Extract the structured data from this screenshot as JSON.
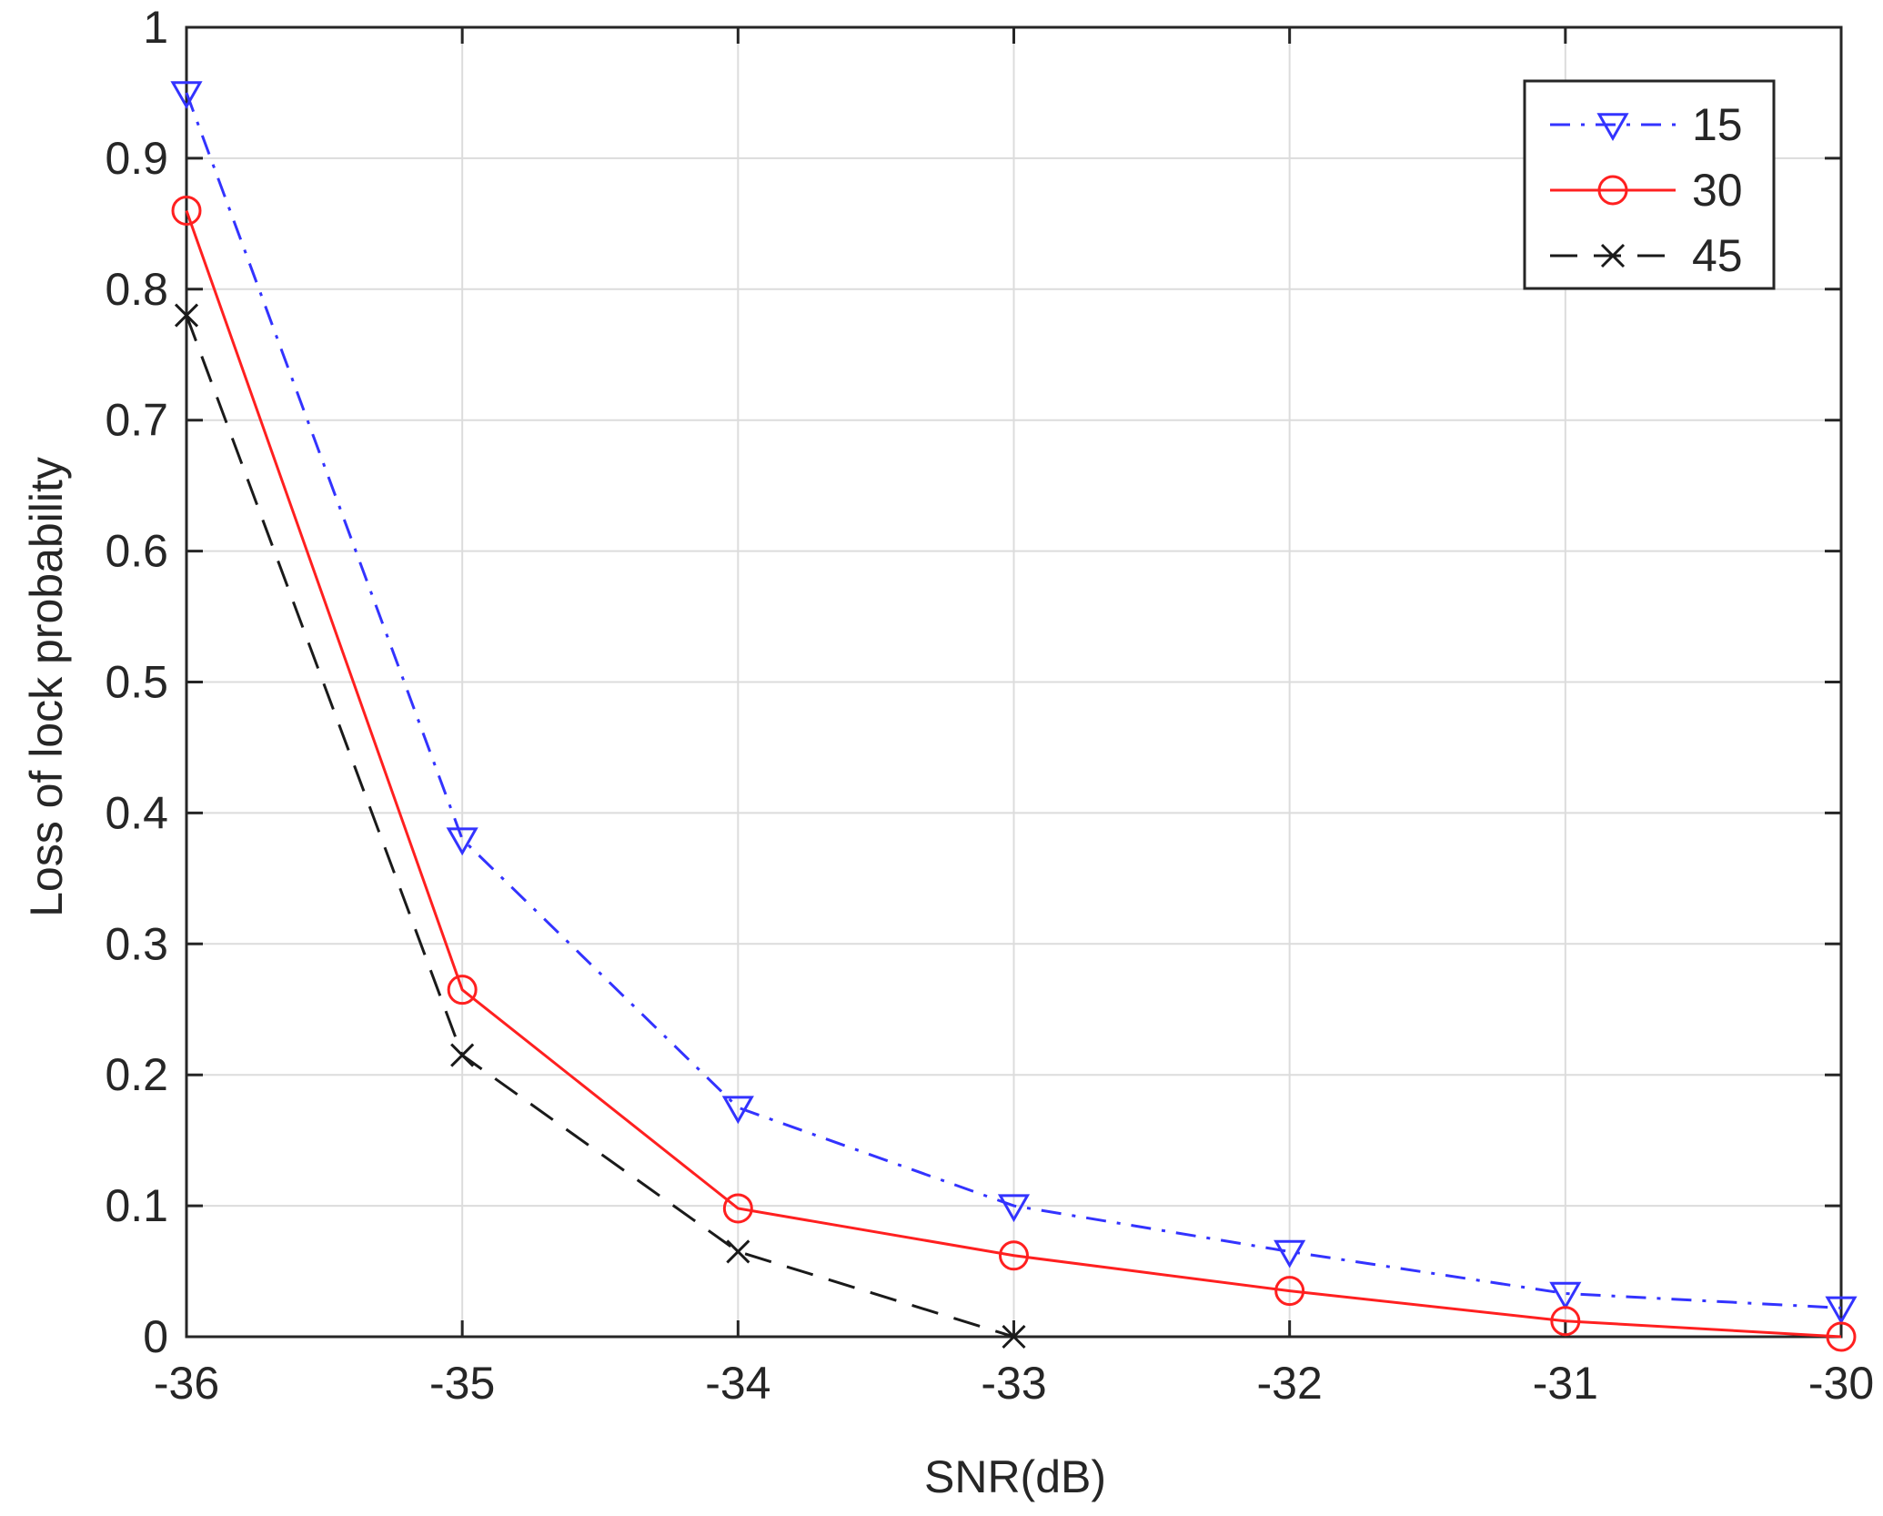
{
  "chart_data": {
    "type": "line",
    "title": "",
    "xlabel": "SNR(dB)",
    "ylabel": "Loss of lock probability",
    "xlim": [
      -36,
      -30
    ],
    "ylim": [
      0,
      1
    ],
    "x_ticks": [
      -36,
      -35,
      -34,
      -33,
      -32,
      -31,
      -30
    ],
    "x_tick_labels": [
      "-36",
      "-35",
      "-34",
      "-33",
      "-32",
      "-31",
      "-30"
    ],
    "y_ticks": [
      0,
      0.1,
      0.2,
      0.3,
      0.4,
      0.5,
      0.6,
      0.7,
      0.8,
      0.9,
      1
    ],
    "y_tick_labels": [
      "0",
      "0.1",
      "0.2",
      "0.3",
      "0.4",
      "0.5",
      "0.6",
      "0.7",
      "0.8",
      "0.9",
      "1"
    ],
    "grid": true,
    "legend_position": "top-right",
    "series": [
      {
        "name": "15",
        "color": "#3333ff",
        "line_style": "dash-dot",
        "marker": "triangle-down",
        "x": [
          -36,
          -35,
          -34,
          -33,
          -32,
          -31,
          -30
        ],
        "y": [
          0.95,
          0.38,
          0.175,
          0.1,
          0.065,
          0.033,
          0.022
        ]
      },
      {
        "name": "30",
        "color": "#ff2020",
        "line_style": "solid",
        "marker": "circle",
        "x": [
          -36,
          -35,
          -34,
          -33,
          -32,
          -31,
          -30
        ],
        "y": [
          0.86,
          0.265,
          0.098,
          0.062,
          0.035,
          0.012,
          0.0
        ]
      },
      {
        "name": "45",
        "color": "#1a1a1a",
        "line_style": "dashed",
        "marker": "x",
        "x": [
          -36,
          -35,
          -34,
          -33
        ],
        "y": [
          0.78,
          0.215,
          0.065,
          0.0
        ]
      }
    ]
  }
}
